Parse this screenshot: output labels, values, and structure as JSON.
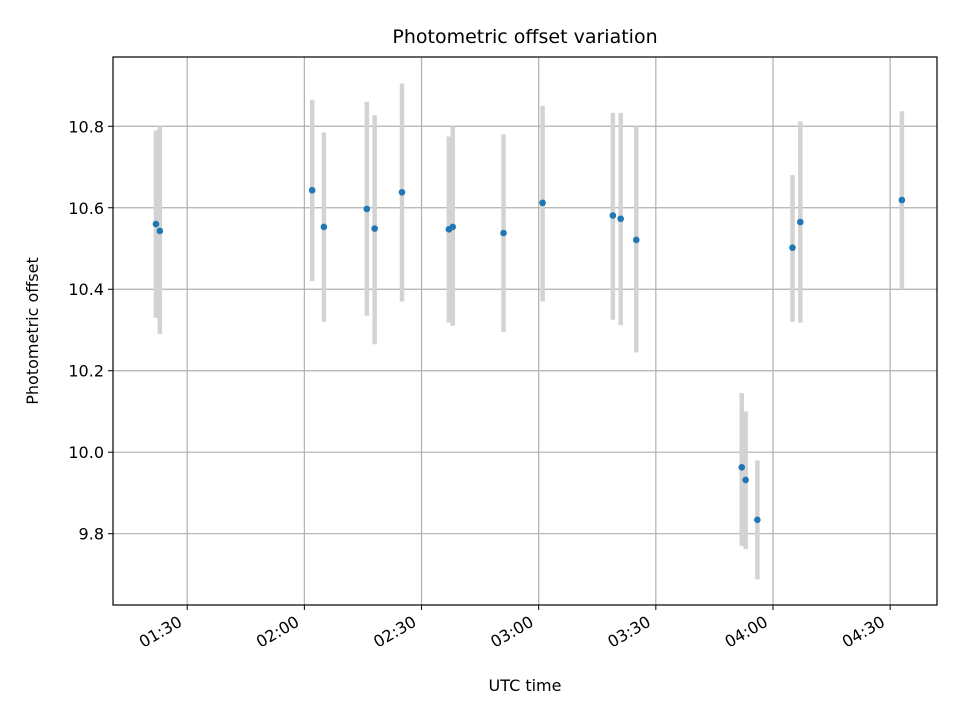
{
  "chart_data": {
    "type": "scatter",
    "title": "Photometric offset variation",
    "xlabel": "UTC time",
    "ylabel": "Photometric offset",
    "x_ticks": [
      "01:30",
      "02:00",
      "02:30",
      "03:00",
      "03:30",
      "04:00",
      "04:30"
    ],
    "y_ticks": [
      "9.8",
      "10.0",
      "10.2",
      "10.4",
      "10.6",
      "10.8"
    ],
    "xlim": [
      "01:11",
      "04:42"
    ],
    "ylim": [
      9.625,
      10.97
    ],
    "grid": true,
    "point_color": "#1f77b4",
    "errorbar_color": "#d3d3d3",
    "points": [
      {
        "x": "01:22",
        "y": 10.56,
        "yerr_low": 10.33,
        "yerr_high": 10.79
      },
      {
        "x": "01:23",
        "y": 10.543,
        "yerr_low": 10.29,
        "yerr_high": 10.8
      },
      {
        "x": "02:02",
        "y": 10.643,
        "yerr_low": 10.42,
        "yerr_high": 10.865
      },
      {
        "x": "02:05",
        "y": 10.553,
        "yerr_low": 10.32,
        "yerr_high": 10.785
      },
      {
        "x": "02:16",
        "y": 10.597,
        "yerr_low": 10.335,
        "yerr_high": 10.86
      },
      {
        "x": "02:18",
        "y": 10.549,
        "yerr_low": 10.265,
        "yerr_high": 10.827
      },
      {
        "x": "02:25",
        "y": 10.638,
        "yerr_low": 10.37,
        "yerr_high": 10.905
      },
      {
        "x": "02:37",
        "y": 10.547,
        "yerr_low": 10.318,
        "yerr_high": 10.775
      },
      {
        "x": "02:38",
        "y": 10.553,
        "yerr_low": 10.31,
        "yerr_high": 10.8
      },
      {
        "x": "02:51",
        "y": 10.538,
        "yerr_low": 10.295,
        "yerr_high": 10.78
      },
      {
        "x": "03:01",
        "y": 10.612,
        "yerr_low": 10.37,
        "yerr_high": 10.85
      },
      {
        "x": "03:19",
        "y": 10.581,
        "yerr_low": 10.325,
        "yerr_high": 10.833
      },
      {
        "x": "03:21",
        "y": 10.573,
        "yerr_low": 10.312,
        "yerr_high": 10.833
      },
      {
        "x": "03:25",
        "y": 10.521,
        "yerr_low": 10.245,
        "yerr_high": 10.8
      },
      {
        "x": "03:52",
        "y": 9.963,
        "yerr_low": 9.77,
        "yerr_high": 10.145
      },
      {
        "x": "03:53",
        "y": 9.932,
        "yerr_low": 9.762,
        "yerr_high": 10.1
      },
      {
        "x": "03:56",
        "y": 9.834,
        "yerr_low": 9.688,
        "yerr_high": 9.98
      },
      {
        "x": "04:05",
        "y": 10.502,
        "yerr_low": 10.32,
        "yerr_high": 10.68
      },
      {
        "x": "04:07",
        "y": 10.565,
        "yerr_low": 10.318,
        "yerr_high": 10.812
      },
      {
        "x": "04:33",
        "y": 10.619,
        "yerr_low": 10.4,
        "yerr_high": 10.837
      }
    ]
  }
}
